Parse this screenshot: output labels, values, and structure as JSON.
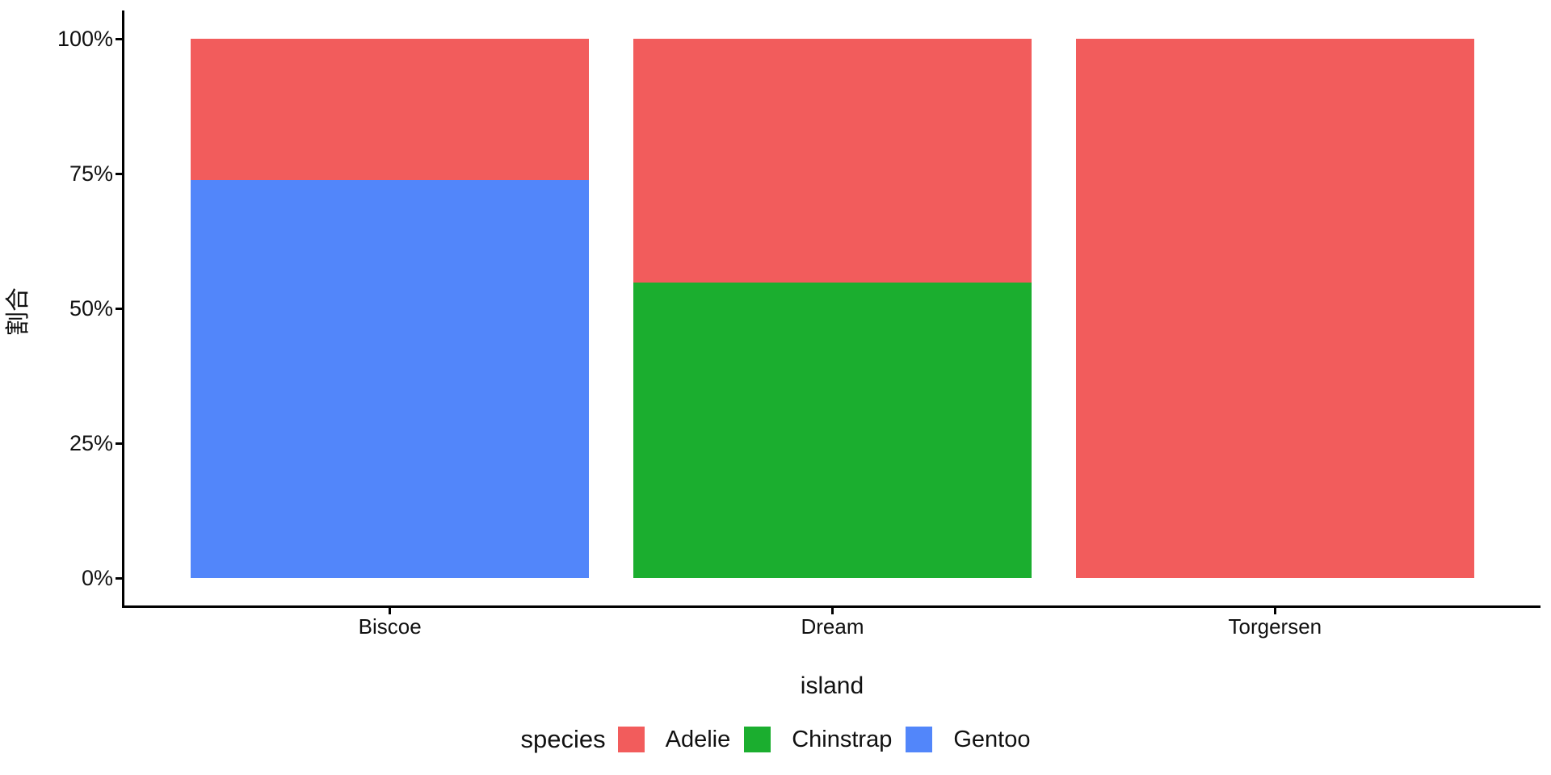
{
  "figure": {
    "background": "#ffffff",
    "axis_color": "#000000",
    "text_color": "#111111"
  },
  "chart_data": {
    "type": "bar",
    "subtype": "stacked-percent",
    "title": "",
    "xlabel": "island",
    "ylabel": "割合",
    "categories": [
      "Biscoe",
      "Dream",
      "Torgersen"
    ],
    "series": [
      {
        "name": "Adelie",
        "color": "#f25c5c",
        "values": [
          26.2,
          45.2,
          100
        ]
      },
      {
        "name": "Chinstrap",
        "color": "#1bae2f",
        "values": [
          0,
          54.8,
          0
        ]
      },
      {
        "name": "Gentoo",
        "color": "#5286fa",
        "values": [
          73.8,
          0,
          0
        ]
      }
    ],
    "stack_order_bottom_to_top": [
      "Gentoo",
      "Chinstrap",
      "Adelie"
    ],
    "y_ticks": [
      "0%",
      "25%",
      "50%",
      "75%",
      "100%"
    ],
    "y_tick_values": [
      0,
      25,
      50,
      75,
      100
    ],
    "ylim": [
      0,
      100
    ],
    "grid": "off",
    "legend": {
      "title": "species",
      "position": "bottom",
      "entries": [
        {
          "label": "Adelie",
          "color": "#f25c5c"
        },
        {
          "label": "Chinstrap",
          "color": "#1bae2f"
        },
        {
          "label": "Gentoo",
          "color": "#5286fa"
        }
      ]
    }
  }
}
